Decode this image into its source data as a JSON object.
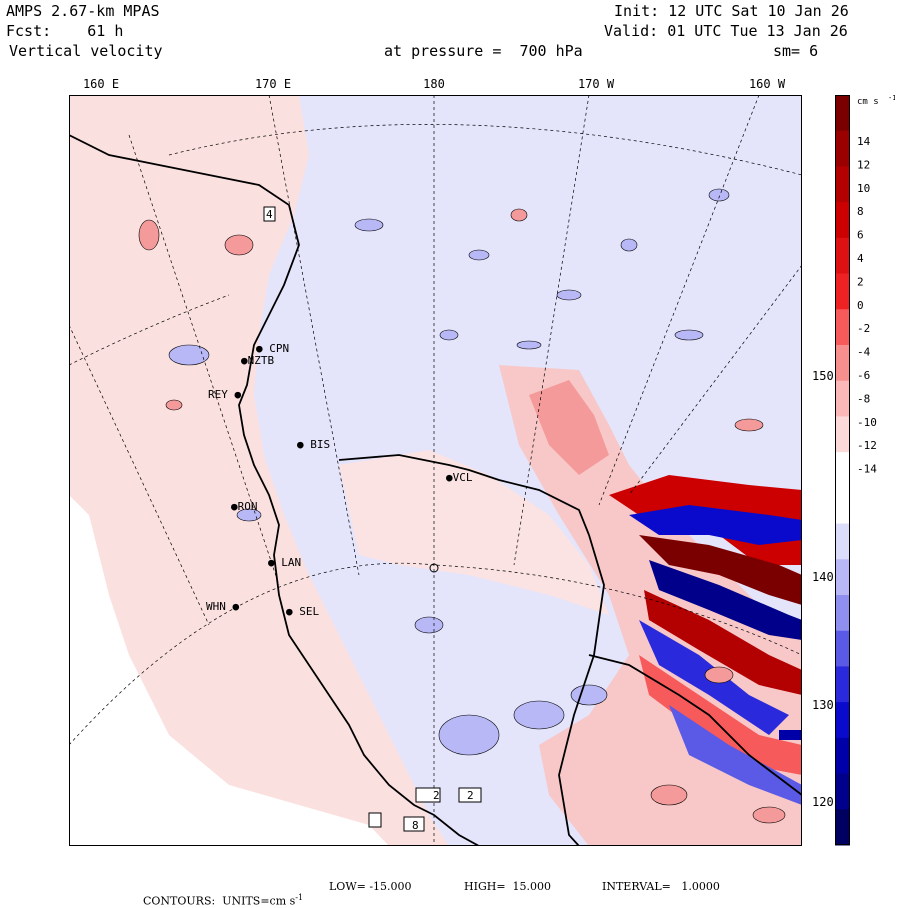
{
  "header": {
    "model": "AMPS 2.67-km MPAS",
    "fcst": "Fcst:    61 h",
    "field": "Vertical velocity",
    "init": "Init: 12 UTC Sat 10 Jan 26",
    "valid": "Valid: 01 UTC Tue 13 Jan 26",
    "pressure": "at pressure =  700 hPa",
    "smooth": "sm= 6"
  },
  "longitude_labels": [
    "160 E",
    "170 E",
    "180",
    "170 W",
    "160 W"
  ],
  "latitude_labels": [
    "150 W",
    "140 W",
    "130 W",
    "120 W"
  ],
  "colorbar": {
    "unit": "cm s",
    "unit_exp": "-1",
    "ticks": [
      "14",
      "12",
      "10",
      "8",
      "6",
      "4",
      "2",
      "0",
      "-2",
      "-4",
      "-6",
      "-8",
      "-10",
      "-12",
      "-14"
    ],
    "colors": [
      "#7a0000",
      "#9a0000",
      "#b30000",
      "#cc0000",
      "#dd1111",
      "#ee2222",
      "#f75a5a",
      "#f88f8f",
      "#fab8b8",
      "#fcdada",
      "#ffffff",
      "#ffffff",
      "#dcdcfb",
      "#b8b8f6",
      "#8f8ff0",
      "#5a5ae6",
      "#2a2adc",
      "#0a0acc",
      "#0000a8",
      "#00008a",
      "#000060"
    ]
  },
  "stations": [
    {
      "id": "CPN"
    },
    {
      "id": "NZTB"
    },
    {
      "id": "REY"
    },
    {
      "id": "BIS"
    },
    {
      "id": "VCL"
    },
    {
      "id": "RON"
    },
    {
      "id": "LAN"
    },
    {
      "id": "WHN"
    },
    {
      "id": "SEL"
    }
  ],
  "boxes": [
    "4",
    "2",
    "2",
    "8"
  ],
  "footer": {
    "contours": "CONTOURS:  UNITS=cm s",
    "exp": "-1",
    "low": "LOW= -15.000",
    "high": "HIGH=  15.000",
    "interval": "INTERVAL=   1.0000"
  },
  "colors": {
    "updraft": "#ee2222",
    "downdraft": "#0a0acc",
    "background_light": "#fbe3e3",
    "background_blue": "#e4e4fb"
  }
}
